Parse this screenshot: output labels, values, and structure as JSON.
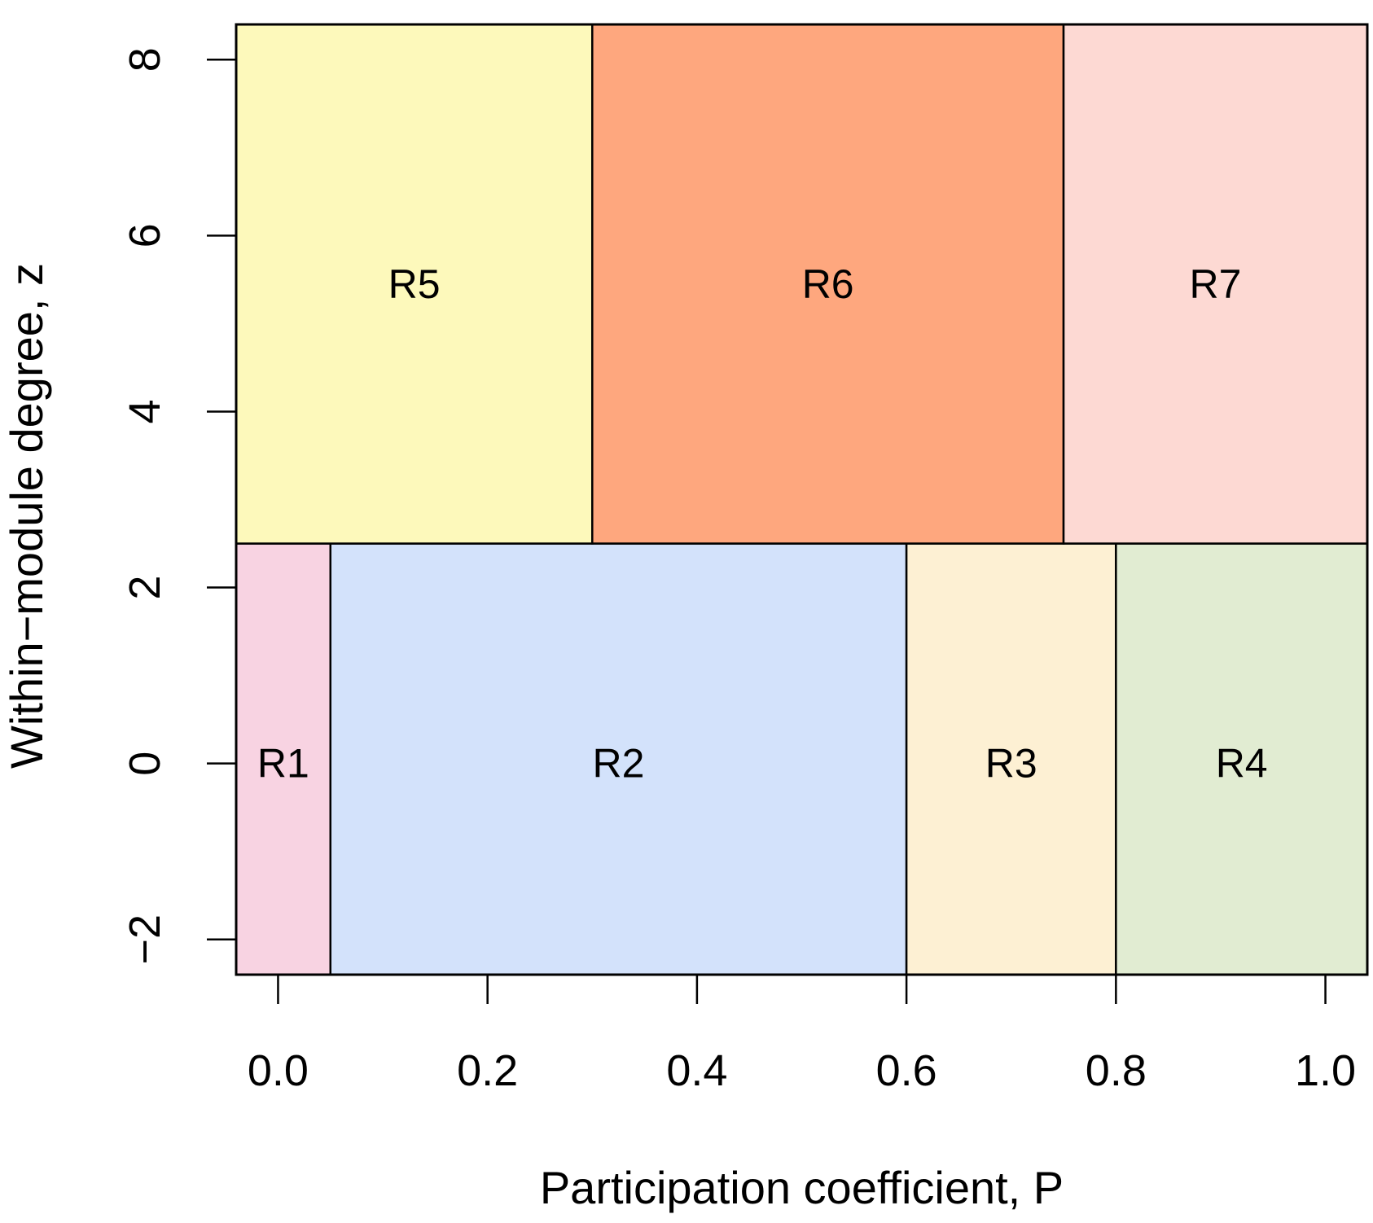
{
  "chart_data": {
    "type": "region-map",
    "title": "",
    "xlabel": "Participation coefficient, P",
    "ylabel": "Within−module degree, z",
    "xlim": [
      -0.04,
      1.04
    ],
    "ylim": [
      -2.4,
      8.4
    ],
    "xticks": [
      {
        "value": 0.0,
        "label": "0.0"
      },
      {
        "value": 0.2,
        "label": "0.2"
      },
      {
        "value": 0.4,
        "label": "0.4"
      },
      {
        "value": 0.6,
        "label": "0.6"
      },
      {
        "value": 0.8,
        "label": "0.8"
      },
      {
        "value": 1.0,
        "label": "1.0"
      }
    ],
    "yticks": [
      {
        "value": -2,
        "label": "−2"
      },
      {
        "value": 0,
        "label": "0"
      },
      {
        "value": 2,
        "label": "2"
      },
      {
        "value": 4,
        "label": "4"
      },
      {
        "value": 6,
        "label": "6"
      },
      {
        "value": 8,
        "label": "8"
      }
    ],
    "grid": false,
    "regions": [
      {
        "label": "R1",
        "x": [
          -0.04,
          0.05
        ],
        "z": [
          -2.4,
          2.5
        ],
        "color": "#f8d3e2"
      },
      {
        "label": "R2",
        "x": [
          0.05,
          0.6
        ],
        "z": [
          -2.4,
          2.5
        ],
        "color": "#d3e2fb"
      },
      {
        "label": "R3",
        "x": [
          0.6,
          0.8
        ],
        "z": [
          -2.4,
          2.5
        ],
        "color": "#fdf0d3"
      },
      {
        "label": "R4",
        "x": [
          0.8,
          1.04
        ],
        "z": [
          -2.4,
          2.5
        ],
        "color": "#e1ecd2"
      },
      {
        "label": "R5",
        "x": [
          -0.04,
          0.3
        ],
        "z": [
          2.5,
          8.4
        ],
        "color": "#fdf9bb"
      },
      {
        "label": "R6",
        "x": [
          0.3,
          0.75
        ],
        "z": [
          2.5,
          8.4
        ],
        "color": "#fea77e"
      },
      {
        "label": "R7",
        "x": [
          0.75,
          1.04
        ],
        "z": [
          2.5,
          8.4
        ],
        "color": "#fdd9d3"
      }
    ]
  }
}
